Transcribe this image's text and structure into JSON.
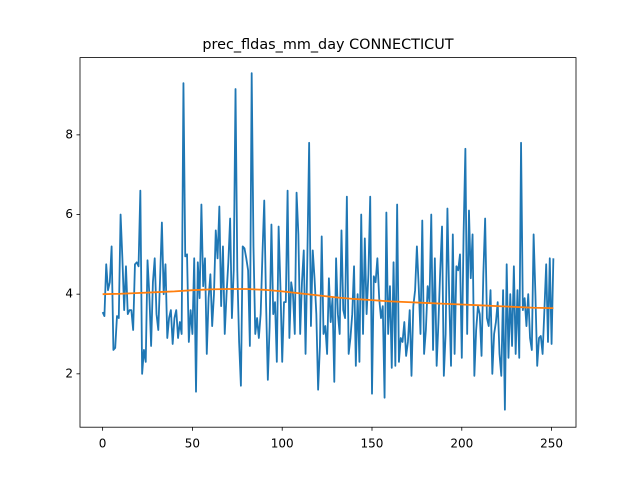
{
  "chart_data": {
    "type": "line",
    "title": "prec_fldas_mm_day CONNECTICUT",
    "xlim": [
      -12.6,
      263.6
    ],
    "ylim": [
      0.66,
      9.94
    ],
    "xticks": [
      0,
      50,
      100,
      150,
      200,
      250
    ],
    "yticks": [
      2,
      4,
      6,
      8
    ],
    "series": [
      {
        "color": "#1f77b4",
        "x": [
          0,
          1,
          2,
          3,
          4,
          5,
          6,
          7,
          8,
          9,
          10,
          11,
          12,
          13,
          14,
          15,
          16,
          17,
          18,
          19,
          20,
          21,
          22,
          23,
          24,
          25,
          26,
          27,
          28,
          29,
          30,
          31,
          32,
          33,
          34,
          35,
          36,
          37,
          38,
          39,
          40,
          41,
          42,
          43,
          44,
          45,
          46,
          47,
          48,
          49,
          50,
          51,
          52,
          53,
          54,
          55,
          56,
          57,
          58,
          59,
          60,
          61,
          62,
          63,
          64,
          65,
          66,
          67,
          68,
          69,
          70,
          71,
          72,
          73,
          74,
          75,
          76,
          77,
          78,
          79,
          80,
          81,
          82,
          83,
          84,
          85,
          86,
          87,
          88,
          89,
          90,
          91,
          92,
          93,
          94,
          95,
          96,
          97,
          98,
          99,
          100,
          101,
          102,
          103,
          104,
          105,
          106,
          107,
          108,
          109,
          110,
          111,
          112,
          113,
          114,
          115,
          116,
          117,
          118,
          119,
          120,
          121,
          122,
          123,
          124,
          125,
          126,
          127,
          128,
          129,
          130,
          131,
          132,
          133,
          134,
          135,
          136,
          137,
          138,
          139,
          140,
          141,
          142,
          143,
          144,
          145,
          146,
          147,
          148,
          149,
          150,
          151,
          152,
          153,
          154,
          155,
          156,
          157,
          158,
          159,
          160,
          161,
          162,
          163,
          164,
          165,
          166,
          167,
          168,
          169,
          170,
          171,
          172,
          173,
          174,
          175,
          176,
          177,
          178,
          179,
          180,
          181,
          182,
          183,
          184,
          185,
          186,
          187,
          188,
          189,
          190,
          191,
          192,
          193,
          194,
          195,
          196,
          197,
          198,
          199,
          200,
          201,
          202,
          203,
          204,
          205,
          206,
          207,
          208,
          209,
          210,
          211,
          212,
          213,
          214,
          215,
          216,
          217,
          218,
          219,
          220,
          221,
          222,
          223,
          224,
          225,
          226,
          227,
          228,
          229,
          230,
          231,
          232,
          233,
          234,
          235,
          236,
          237,
          238,
          239,
          240,
          241,
          242,
          243,
          244,
          245,
          246,
          247,
          248,
          249,
          250,
          251
        ],
        "values": [
          3.55,
          3.45,
          4.75,
          4.1,
          4.3,
          5.2,
          2.6,
          2.65,
          3.45,
          3.4,
          6.0,
          4.9,
          3.6,
          4.7,
          3.5,
          3.6,
          3.6,
          3.1,
          4.75,
          4.8,
          4.7,
          6.6,
          2.0,
          2.6,
          2.3,
          4.85,
          4.0,
          2.7,
          4.3,
          4.9,
          3.5,
          3.1,
          4.4,
          5.8,
          4.0,
          4.75,
          2.9,
          3.4,
          3.6,
          2.75,
          3.4,
          3.6,
          2.9,
          3.3,
          3.0,
          9.3,
          4.95,
          5.0,
          2.8,
          3.6,
          3.0,
          4.9,
          1.55,
          4.8,
          3.9,
          6.25,
          4.2,
          4.9,
          2.5,
          3.9,
          4.5,
          3.2,
          4.0,
          5.6,
          4.9,
          6.2,
          3.7,
          5.2,
          3.0,
          4.0,
          4.8,
          5.9,
          3.4,
          4.6,
          9.15,
          4.6,
          2.8,
          1.7,
          5.2,
          5.15,
          4.9,
          4.6,
          2.7,
          9.55,
          5.2,
          3.0,
          3.4,
          2.9,
          3.5,
          5.0,
          6.35,
          3.8,
          1.85,
          3.2,
          5.75,
          3.5,
          3.8,
          2.3,
          5.7,
          4.2,
          2.3,
          3.8,
          3.8,
          6.6,
          2.9,
          4.3,
          4.0,
          3.0,
          6.55,
          5.5,
          3.0,
          4.3,
          5.1,
          2.5,
          4.9,
          7.8,
          3.2,
          5.1,
          4.4,
          3.5,
          1.6,
          2.7,
          5.45,
          3.0,
          3.2,
          2.5,
          4.4,
          3.3,
          3.9,
          1.8,
          4.9,
          3.5,
          3.0,
          5.6,
          3.6,
          3.4,
          6.45,
          2.5,
          2.9,
          3.5,
          4.7,
          2.2,
          4.0,
          2.3,
          6.0,
          3.0,
          5.4,
          3.5,
          4.5,
          6.45,
          1.5,
          4.45,
          4.3,
          4.9,
          3.9,
          3.4,
          3.7,
          1.4,
          6.05,
          3.0,
          4.2,
          2.15,
          4.8,
          2.2,
          6.25,
          2.3,
          2.9,
          2.8,
          3.3,
          2.45,
          2.8,
          3.6,
          1.95,
          3.7,
          4.1,
          5.2,
          4.2,
          3.0,
          5.85,
          2.5,
          3.1,
          4.2,
          3.8,
          6.0,
          2.6,
          4.9,
          2.2,
          3.3,
          4.6,
          5.7,
          1.95,
          3.0,
          6.15,
          3.9,
          2.2,
          5.5,
          2.5,
          4.7,
          4.6,
          5.0,
          2.4,
          5.5,
          7.65,
          3.0,
          6.1,
          4.4,
          5.5,
          1.95,
          3.1,
          3.7,
          3.5,
          2.45,
          4.5,
          5.9,
          3.4,
          3.2,
          4.1,
          2.0,
          3.0,
          3.3,
          3.8,
          2.5,
          1.95,
          4.1,
          1.1,
          4.75,
          2.4,
          4.0,
          2.7,
          4.7,
          2.5,
          4.1,
          2.4,
          7.8,
          3.6,
          3.9,
          3.2,
          4.0,
          2.9,
          2.6,
          5.5,
          4.0,
          2.2,
          2.9,
          2.95,
          2.5,
          3.6,
          4.75,
          2.8,
          4.9,
          2.75,
          4.9
        ]
      },
      {
        "color": "#ff7f0e",
        "x": [
          0,
          10,
          20,
          30,
          40,
          50,
          60,
          70,
          80,
          90,
          100,
          110,
          120,
          130,
          140,
          150,
          160,
          170,
          180,
          190,
          200,
          210,
          220,
          230,
          240,
          250,
          251
        ],
        "values": [
          4.0,
          4.01,
          4.03,
          4.05,
          4.07,
          4.1,
          4.12,
          4.13,
          4.13,
          4.11,
          4.07,
          4.02,
          3.97,
          3.92,
          3.88,
          3.85,
          3.82,
          3.8,
          3.78,
          3.76,
          3.74,
          3.72,
          3.7,
          3.68,
          3.66,
          3.65,
          3.65
        ]
      }
    ]
  }
}
